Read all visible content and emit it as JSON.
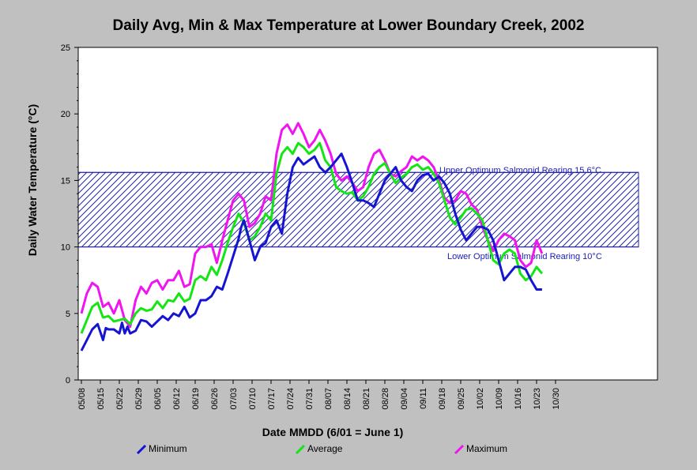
{
  "chart_data": {
    "type": "line",
    "title": "Daily Avg, Min & Max Temperature at Lower Boundary Creek, 2002",
    "xlabel": "Date MMDD (6/01 = June 1)",
    "ylabel": "Daily Water Temperature (°C)",
    "ylim": [
      0,
      25
    ],
    "yticks": [
      "0",
      "5",
      "10",
      "15",
      "20",
      "25"
    ],
    "xticks": [
      "05/08",
      "05/15",
      "05/22",
      "05/29",
      "06/05",
      "06/12",
      "06/19",
      "06/26",
      "07/03",
      "07/10",
      "07/17",
      "07/24",
      "07/31",
      "08/07",
      "08/14",
      "08/21",
      "08/28",
      "09/04",
      "09/11",
      "09/18",
      "09/25",
      "10/02",
      "10/09",
      "10/16",
      "10/23",
      "10/30"
    ],
    "x_day_range": [
      0,
      175
    ],
    "bands": [
      {
        "name": "Upper Optimum Salmonid Rearing 15.6°C",
        "value": 15.6
      },
      {
        "name": "Lower Optimum Salmonid Rearing 10°C",
        "value": 10
      }
    ],
    "legend_position": "bottom",
    "series": [
      {
        "name": "Minimum",
        "color": "#1414d2",
        "x": [
          0,
          2,
          4,
          6,
          8,
          9,
          10,
          12,
          14,
          15,
          16,
          17,
          18,
          20,
          22,
          24,
          26,
          28,
          30,
          32,
          34,
          36,
          38,
          40,
          42,
          44,
          46,
          48,
          50,
          52,
          54,
          56,
          58,
          59,
          60,
          62,
          64,
          66,
          68,
          70,
          72,
          74,
          76,
          78,
          80,
          82,
          84,
          86,
          88,
          90,
          92,
          94,
          96,
          98,
          100,
          102,
          104,
          106,
          108,
          110,
          112,
          114,
          116,
          118,
          120,
          122,
          124,
          126,
          128,
          130,
          132,
          134,
          136,
          138,
          140,
          142,
          144,
          146,
          148,
          150,
          152,
          154,
          156,
          158,
          160,
          162,
          164,
          166,
          168,
          170
        ],
        "values": [
          2.2,
          3.0,
          3.8,
          4.2,
          3.0,
          3.9,
          3.8,
          3.8,
          3.5,
          4.3,
          3.5,
          4.0,
          3.5,
          3.7,
          4.5,
          4.4,
          4.0,
          4.4,
          4.8,
          4.5,
          5.0,
          4.8,
          5.5,
          4.7,
          5.0,
          6.0,
          6.0,
          6.3,
          7.0,
          6.8,
          8.0,
          9.3,
          10.6,
          11.5,
          12.0,
          10.5,
          9.0,
          10.0,
          10.3,
          11.5,
          12.0,
          11.0,
          14.0,
          16.0,
          16.7,
          16.2,
          16.5,
          16.8,
          16.0,
          15.6,
          16.0,
          16.5,
          17.0,
          16.0,
          14.8,
          13.5,
          13.5,
          13.3,
          13.0,
          14.0,
          15.0,
          15.5,
          16.0,
          15.0,
          14.5,
          14.2,
          15.0,
          15.4,
          15.5,
          15.0,
          15.3,
          14.8,
          14.0,
          12.5,
          11.3,
          10.5,
          11.0,
          11.5,
          11.5,
          11.3,
          10.5,
          9.0,
          7.5,
          8.0,
          8.5,
          8.5,
          8.3,
          7.5,
          6.8,
          6.8
        ]
      },
      {
        "name": "Average",
        "color": "#14e614",
        "x": [
          0,
          2,
          4,
          6,
          8,
          10,
          12,
          14,
          16,
          18,
          20,
          22,
          24,
          26,
          28,
          30,
          32,
          34,
          36,
          38,
          40,
          42,
          44,
          46,
          48,
          50,
          52,
          54,
          56,
          58,
          60,
          62,
          64,
          66,
          68,
          70,
          72,
          74,
          76,
          78,
          80,
          82,
          84,
          86,
          88,
          90,
          92,
          94,
          96,
          98,
          100,
          102,
          104,
          106,
          108,
          110,
          112,
          114,
          116,
          118,
          120,
          122,
          124,
          126,
          128,
          130,
          132,
          134,
          136,
          138,
          140,
          142,
          144,
          146,
          148,
          150,
          152,
          154,
          156,
          158,
          160,
          162,
          164,
          166,
          168,
          170
        ],
        "values": [
          3.5,
          4.5,
          5.5,
          5.8,
          4.7,
          4.8,
          4.4,
          4.5,
          4.6,
          4.2,
          5.0,
          5.4,
          5.2,
          5.3,
          5.9,
          5.4,
          6.0,
          5.9,
          6.5,
          5.9,
          6.1,
          7.5,
          7.8,
          7.5,
          8.5,
          7.9,
          9.0,
          10.3,
          11.5,
          12.5,
          11.8,
          10.5,
          10.8,
          11.5,
          12.5,
          12.0,
          15.5,
          17.0,
          17.5,
          17.0,
          17.8,
          17.5,
          17.0,
          17.3,
          17.8,
          16.5,
          16.0,
          14.5,
          14.2,
          14.0,
          14.1,
          13.5,
          13.8,
          14.5,
          15.5,
          16.0,
          16.3,
          15.5,
          14.8,
          15.2,
          15.5,
          16.0,
          16.2,
          15.8,
          16.0,
          15.5,
          14.8,
          13.5,
          12.2,
          11.7,
          12.2,
          12.8,
          12.9,
          12.5,
          12.0,
          10.5,
          9.0,
          8.7,
          9.5,
          9.8,
          9.5,
          8.0,
          7.5,
          7.8,
          8.5,
          8.0
        ]
      },
      {
        "name": "Maximum",
        "color": "#f014f0",
        "x": [
          0,
          2,
          4,
          6,
          8,
          10,
          12,
          14,
          16,
          18,
          20,
          22,
          24,
          26,
          28,
          30,
          32,
          34,
          36,
          38,
          40,
          42,
          44,
          46,
          48,
          50,
          52,
          54,
          56,
          58,
          60,
          62,
          64,
          66,
          68,
          70,
          72,
          74,
          76,
          78,
          80,
          82,
          84,
          86,
          88,
          90,
          92,
          94,
          96,
          98,
          100,
          102,
          104,
          106,
          108,
          110,
          112,
          114,
          116,
          118,
          120,
          122,
          124,
          126,
          128,
          130,
          132,
          134,
          136,
          138,
          140,
          142,
          144,
          146,
          148,
          150,
          152,
          154,
          156,
          158,
          160,
          162,
          164,
          166,
          168,
          170
        ],
        "values": [
          5.0,
          6.5,
          7.3,
          7.0,
          5.5,
          5.8,
          5.0,
          6.0,
          4.5,
          4.0,
          6.0,
          7.0,
          6.5,
          7.3,
          7.5,
          6.8,
          7.5,
          7.5,
          8.2,
          7.0,
          7.2,
          9.5,
          10.0,
          10.0,
          10.2,
          8.8,
          10.5,
          12.0,
          13.5,
          14.0,
          13.5,
          11.5,
          11.8,
          12.5,
          13.8,
          13.5,
          17.0,
          18.8,
          19.2,
          18.5,
          19.3,
          18.5,
          17.5,
          18.0,
          18.8,
          18.0,
          17.0,
          15.5,
          15.0,
          15.3,
          14.8,
          14.2,
          14.5,
          16.0,
          17.0,
          17.3,
          16.5,
          15.5,
          15.3,
          15.7,
          16.0,
          16.8,
          16.5,
          16.8,
          16.5,
          16.0,
          15.0,
          13.7,
          13.3,
          13.5,
          14.2,
          14.0,
          13.2,
          12.8,
          11.5,
          10.5,
          9.7,
          10.5,
          11.0,
          10.8,
          10.5,
          9.0,
          8.5,
          8.8,
          10.5,
          9.5
        ]
      }
    ]
  }
}
